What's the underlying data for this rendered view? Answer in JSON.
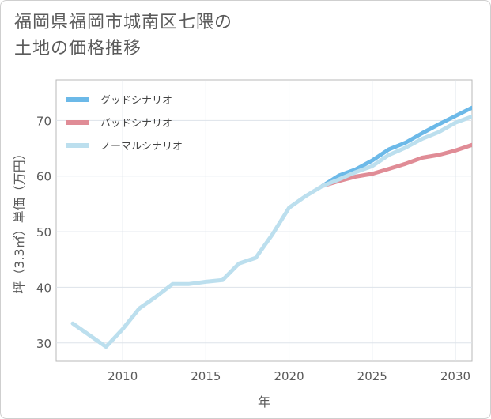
{
  "title_line1": "福岡県福岡市城南区七隈の",
  "title_line2": "土地の価格推移",
  "chart_data": {
    "type": "line",
    "xlabel": "年",
    "ylabel": "坪（3.3㎡）単価（万円）",
    "xlim": [
      2006,
      2031
    ],
    "ylim": [
      26.7,
      77.3
    ],
    "xticks": [
      2010,
      2015,
      2020,
      2025,
      2030
    ],
    "yticks": [
      30,
      40,
      50,
      60,
      70
    ],
    "legend_position": "top-left",
    "grid": true,
    "series": [
      {
        "name": "グッドシナリオ",
        "color": "#6cb9e8",
        "x": [
          2022,
          2023,
          2024,
          2025,
          2026,
          2027,
          2028,
          2029,
          2030,
          2031
        ],
        "values": [
          58.2,
          60.1,
          61.2,
          62.8,
          64.8,
          66.0,
          67.7,
          69.3,
          70.8,
          72.3
        ]
      },
      {
        "name": "バッドシナリオ",
        "color": "#e08c96",
        "x": [
          2022,
          2023,
          2024,
          2025,
          2026,
          2027,
          2028,
          2029,
          2030,
          2031
        ],
        "values": [
          58.2,
          59.1,
          59.9,
          60.4,
          61.3,
          62.2,
          63.3,
          63.8,
          64.6,
          65.6
        ]
      },
      {
        "name": "ノーマルシナリオ",
        "color": "#bcdfee",
        "x": [
          2007,
          2008,
          2009,
          2010,
          2011,
          2012,
          2013,
          2014,
          2015,
          2016,
          2017,
          2018,
          2019,
          2020,
          2021,
          2022,
          2023,
          2024,
          2025,
          2026,
          2027,
          2028,
          2029,
          2030,
          2031
        ],
        "values": [
          33.5,
          31.4,
          29.3,
          32.5,
          36.2,
          38.3,
          40.6,
          40.6,
          41.0,
          41.3,
          44.3,
          45.3,
          49.5,
          54.3,
          56.4,
          58.2,
          59.4,
          60.7,
          61.8,
          63.8,
          65.1,
          66.7,
          67.9,
          69.6,
          70.7
        ]
      }
    ]
  }
}
